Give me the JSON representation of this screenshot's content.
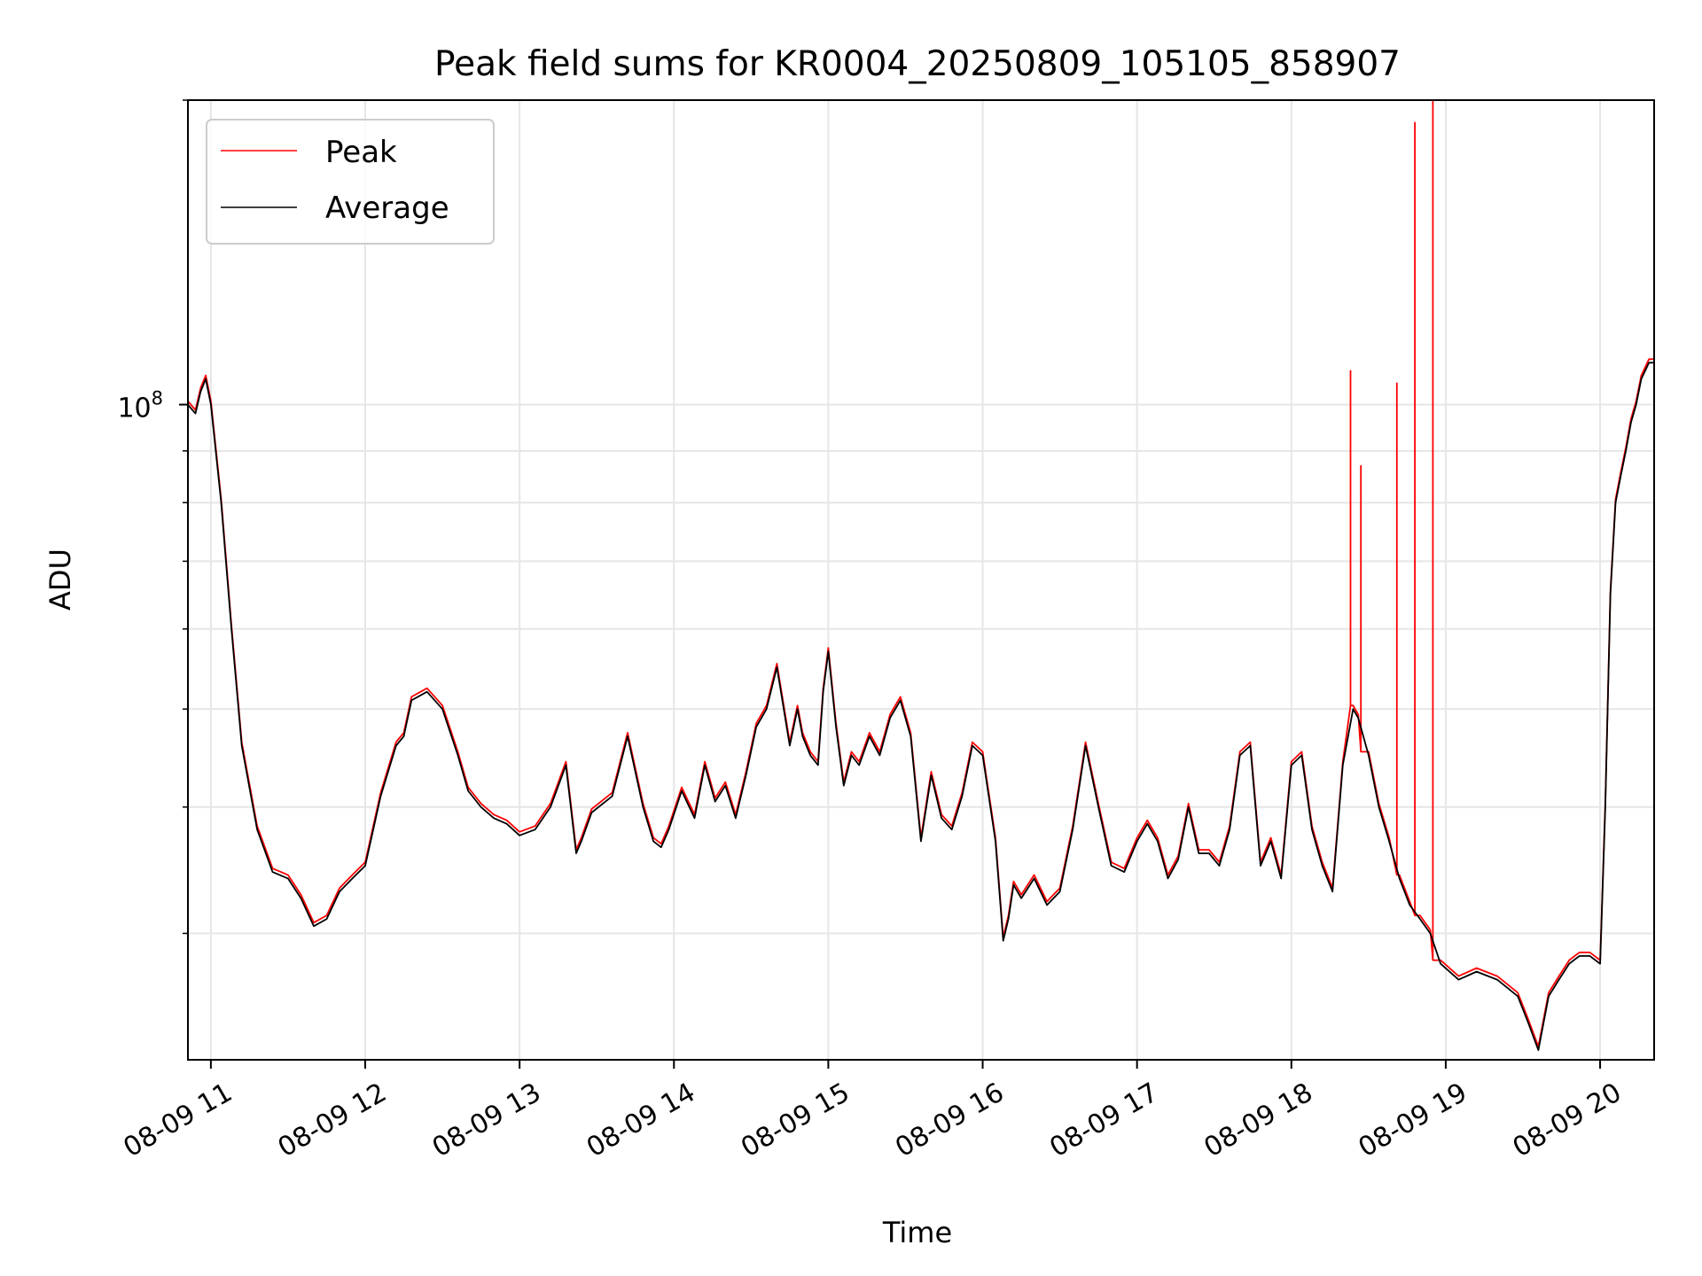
{
  "chart_data": {
    "type": "line",
    "title": "Peak field sums for KR0004_20250809_105105_858907",
    "xlabel": "Time",
    "ylabel": "ADU",
    "y_scale": "log",
    "ylim": [
      22500000,
      200000000
    ],
    "xlim": [
      "2025-08-09 10:51:05",
      "2025-08-09 20:21:00"
    ],
    "grid": true,
    "legend_position": "top-left",
    "x_tick_labels": [
      "08-09 11",
      "08-09 12",
      "08-09 13",
      "08-09 14",
      "08-09 15",
      "08-09 16",
      "08-09 17",
      "08-09 18",
      "08-09 19",
      "08-09 20"
    ],
    "x_ticks": [
      "2025-08-09 11:00",
      "2025-08-09 12:00",
      "2025-08-09 13:00",
      "2025-08-09 14:00",
      "2025-08-09 15:00",
      "2025-08-09 16:00",
      "2025-08-09 17:00",
      "2025-08-09 18:00",
      "2025-08-09 19:00",
      "2025-08-09 20:00"
    ],
    "y_major_tick_label": "10^8",
    "y_major_tick": 100000000,
    "y_minor_ticks": [
      30000000,
      40000000,
      50000000,
      60000000,
      70000000,
      80000000,
      90000000,
      200000000
    ],
    "series": [
      {
        "name": "Peak",
        "color": "#ff0000",
        "spikes": [
          {
            "x": "2025-08-09 18:23",
            "y": 108000000
          },
          {
            "x": "2025-08-09 18:27",
            "y": 87000000
          },
          {
            "x": "2025-08-09 18:41",
            "y": 105000000
          },
          {
            "x": "2025-08-09 18:48",
            "y": 190000000
          },
          {
            "x": "2025-08-09 18:55",
            "y": 200000000
          }
        ]
      },
      {
        "name": "Average",
        "color": "#000000",
        "x": [
          "2025-08-09 10:51",
          "2025-08-09 10:54",
          "2025-08-09 10:56",
          "2025-08-09 10:58",
          "2025-08-09 11:00",
          "2025-08-09 11:04",
          "2025-08-09 11:08",
          "2025-08-09 11:12",
          "2025-08-09 11:18",
          "2025-08-09 11:24",
          "2025-08-09 11:30",
          "2025-08-09 11:35",
          "2025-08-09 11:40",
          "2025-08-09 11:45",
          "2025-08-09 11:50",
          "2025-08-09 11:55",
          "2025-08-09 12:00",
          "2025-08-09 12:06",
          "2025-08-09 12:12",
          "2025-08-09 12:15",
          "2025-08-09 12:18",
          "2025-08-09 12:24",
          "2025-08-09 12:30",
          "2025-08-09 12:36",
          "2025-08-09 12:40",
          "2025-08-09 12:45",
          "2025-08-09 12:50",
          "2025-08-09 12:55",
          "2025-08-09 13:00",
          "2025-08-09 13:06",
          "2025-08-09 13:12",
          "2025-08-09 13:18",
          "2025-08-09 13:22",
          "2025-08-09 13:24",
          "2025-08-09 13:28",
          "2025-08-09 13:36",
          "2025-08-09 13:42",
          "2025-08-09 13:48",
          "2025-08-09 13:52",
          "2025-08-09 13:55",
          "2025-08-09 13:58",
          "2025-08-09 14:03",
          "2025-08-09 14:08",
          "2025-08-09 14:12",
          "2025-08-09 14:16",
          "2025-08-09 14:20",
          "2025-08-09 14:24",
          "2025-08-09 14:28",
          "2025-08-09 14:32",
          "2025-08-09 14:36",
          "2025-08-09 14:40",
          "2025-08-09 14:45",
          "2025-08-09 14:48",
          "2025-08-09 14:50",
          "2025-08-09 14:53",
          "2025-08-09 14:56",
          "2025-08-09 14:58",
          "2025-08-09 15:00",
          "2025-08-09 15:03",
          "2025-08-09 15:06",
          "2025-08-09 15:09",
          "2025-08-09 15:12",
          "2025-08-09 15:16",
          "2025-08-09 15:20",
          "2025-08-09 15:24",
          "2025-08-09 15:28",
          "2025-08-09 15:32",
          "2025-08-09 15:36",
          "2025-08-09 15:40",
          "2025-08-09 15:44",
          "2025-08-09 15:48",
          "2025-08-09 15:52",
          "2025-08-09 15:56",
          "2025-08-09 16:00",
          "2025-08-09 16:05",
          "2025-08-09 16:08",
          "2025-08-09 16:10",
          "2025-08-09 16:12",
          "2025-08-09 16:15",
          "2025-08-09 16:20",
          "2025-08-09 16:25",
          "2025-08-09 16:30",
          "2025-08-09 16:35",
          "2025-08-09 16:40",
          "2025-08-09 16:45",
          "2025-08-09 16:50",
          "2025-08-09 16:55",
          "2025-08-09 17:00",
          "2025-08-09 17:04",
          "2025-08-09 17:08",
          "2025-08-09 17:12",
          "2025-08-09 17:16",
          "2025-08-09 17:20",
          "2025-08-09 17:24",
          "2025-08-09 17:28",
          "2025-08-09 17:32",
          "2025-08-09 17:36",
          "2025-08-09 17:40",
          "2025-08-09 17:44",
          "2025-08-09 17:48",
          "2025-08-09 17:52",
          "2025-08-09 17:56",
          "2025-08-09 18:00",
          "2025-08-09 18:04",
          "2025-08-09 18:08",
          "2025-08-09 18:12",
          "2025-08-09 18:16",
          "2025-08-09 18:20",
          "2025-08-09 18:24",
          "2025-08-09 18:26",
          "2025-08-09 18:30",
          "2025-08-09 18:34",
          "2025-08-09 18:38",
          "2025-08-09 18:42",
          "2025-08-09 18:46",
          "2025-08-09 18:50",
          "2025-08-09 18:54",
          "2025-08-09 18:58",
          "2025-08-09 19:05",
          "2025-08-09 19:12",
          "2025-08-09 19:20",
          "2025-08-09 19:28",
          "2025-08-09 19:32",
          "2025-08-09 19:36",
          "2025-08-09 19:40",
          "2025-08-09 19:44",
          "2025-08-09 19:48",
          "2025-08-09 19:52",
          "2025-08-09 19:56",
          "2025-08-09 20:00",
          "2025-08-09 20:02",
          "2025-08-09 20:04",
          "2025-08-09 20:06",
          "2025-08-09 20:08",
          "2025-08-09 20:10",
          "2025-08-09 20:12",
          "2025-08-09 20:14",
          "2025-08-09 20:16",
          "2025-08-09 20:19",
          "2025-08-09 20:21"
        ],
        "y": [
          100000000,
          98000000,
          103000000,
          106000000,
          100000000,
          80000000,
          60000000,
          46000000,
          38000000,
          34500000,
          34000000,
          32500000,
          30500000,
          31000000,
          33000000,
          34000000,
          35000000,
          41000000,
          46000000,
          47000000,
          51000000,
          52000000,
          50000000,
          45000000,
          41500000,
          40000000,
          39000000,
          38500000,
          37500000,
          38000000,
          40000000,
          44000000,
          36000000,
          37000000,
          39500000,
          41000000,
          47000000,
          40000000,
          37000000,
          36500000,
          38000000,
          41500000,
          39000000,
          44000000,
          40500000,
          42000000,
          39000000,
          43000000,
          48000000,
          50000000,
          55000000,
          46000000,
          50000000,
          47000000,
          45000000,
          44000000,
          52000000,
          57000000,
          48000000,
          42000000,
          45000000,
          44000000,
          47000000,
          45000000,
          49000000,
          51000000,
          47000000,
          37000000,
          43000000,
          39000000,
          38000000,
          41000000,
          46000000,
          45000000,
          37000000,
          29500000,
          31000000,
          33500000,
          32500000,
          34000000,
          32000000,
          33000000,
          38000000,
          46000000,
          40000000,
          35000000,
          34500000,
          37000000,
          38500000,
          37000000,
          34000000,
          35500000,
          40000000,
          36000000,
          36000000,
          35000000,
          38000000,
          45000000,
          46000000,
          35000000,
          37000000,
          34000000,
          44000000,
          45000000,
          38000000,
          35000000,
          33000000,
          44000000,
          50000000,
          49000000,
          45000000,
          40000000,
          37000000,
          34000000,
          32000000,
          31000000,
          30000000,
          28000000,
          27000000,
          27500000,
          27000000,
          26000000,
          24500000,
          23000000,
          26000000,
          27000000,
          28000000,
          28500000,
          28500000,
          28000000,
          40000000,
          65000000,
          80000000,
          85000000,
          90000000,
          96000000,
          100000000,
          106000000,
          110000000,
          110000000
        ]
      }
    ]
  }
}
